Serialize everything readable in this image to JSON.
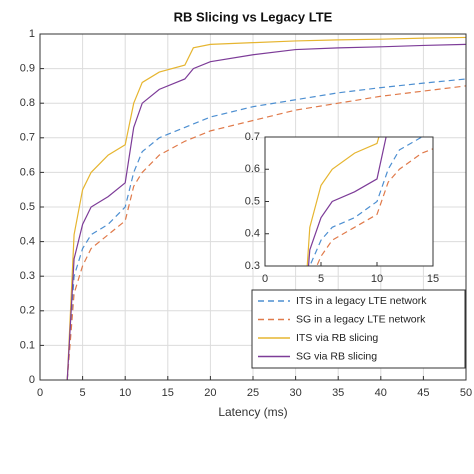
{
  "chart_data": {
    "type": "line",
    "title": "RB Slicing vs Legacy LTE",
    "xlabel": "Latency (ms)",
    "x": [
      3.2,
      4,
      5,
      6,
      8,
      10,
      11,
      12,
      14,
      17,
      18,
      20,
      25,
      30,
      35,
      40,
      45,
      50
    ],
    "series": [
      {
        "name": "ITS in a legacy LTE network",
        "color": "#4d8fd1",
        "dashed": true,
        "values": [
          0,
          0.3,
          0.38,
          0.42,
          0.45,
          0.5,
          0.6,
          0.66,
          0.7,
          0.73,
          0.74,
          0.76,
          0.79,
          0.81,
          0.83,
          0.845,
          0.858,
          0.87
        ]
      },
      {
        "name": "SG in a legacy LTE network",
        "color": "#e07a4a",
        "dashed": true,
        "values": [
          0,
          0.25,
          0.33,
          0.38,
          0.42,
          0.46,
          0.56,
          0.6,
          0.65,
          0.69,
          0.7,
          0.72,
          0.75,
          0.78,
          0.8,
          0.82,
          0.835,
          0.85
        ]
      },
      {
        "name": "ITS via RB slicing",
        "color": "#e6b530",
        "dashed": false,
        "values": [
          0,
          0.42,
          0.55,
          0.6,
          0.65,
          0.68,
          0.8,
          0.86,
          0.89,
          0.91,
          0.96,
          0.97,
          0.975,
          0.98,
          0.983,
          0.985,
          0.988,
          0.99
        ]
      },
      {
        "name": "SG via RB slicing",
        "color": "#7d3c98",
        "dashed": false,
        "values": [
          0,
          0.35,
          0.45,
          0.5,
          0.53,
          0.57,
          0.73,
          0.8,
          0.84,
          0.87,
          0.9,
          0.92,
          0.94,
          0.955,
          0.96,
          0.963,
          0.967,
          0.97
        ]
      }
    ],
    "xlim": [
      0,
      50
    ],
    "ylim": [
      0,
      1
    ],
    "xticks": [
      0,
      5,
      10,
      15,
      20,
      25,
      30,
      35,
      40,
      45,
      50
    ],
    "yticks": [
      0,
      0.1,
      0.2,
      0.3,
      0.4,
      0.5,
      0.6,
      0.7,
      0.8,
      0.9,
      1
    ],
    "grid": true,
    "legend_position": "lower-right",
    "inset": {
      "xlim": [
        0,
        15
      ],
      "ylim": [
        0.3,
        0.7
      ],
      "xticks": [
        0,
        5,
        10,
        15
      ],
      "yticks": [
        0.3,
        0.4,
        0.5,
        0.6,
        0.7
      ],
      "grid": false
    }
  }
}
